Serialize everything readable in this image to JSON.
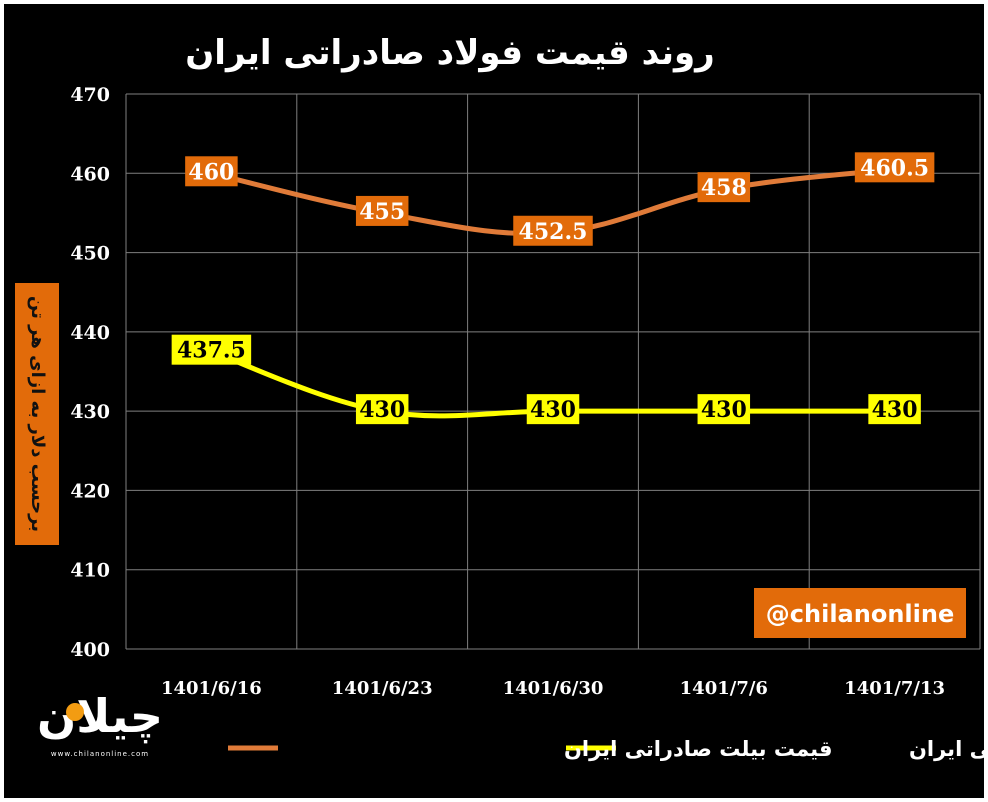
{
  "chart_data": {
    "type": "line",
    "title": "روند قیمت فولاد صادراتی ایران",
    "ylabel": "برحسب دلار به ازای هر تن",
    "xlabel": "",
    "categories": [
      "1401/6/16",
      "1401/6/23",
      "1401/6/30",
      "1401/7/6",
      "1401/7/13"
    ],
    "ylim": [
      400,
      470
    ],
    "yticks": [
      400,
      410,
      420,
      430,
      440,
      450,
      460,
      470
    ],
    "grid": true,
    "legend_position": "bottom",
    "series": [
      {
        "name": "قیمت بیلت صادراتی ایران",
        "values": [
          460,
          455,
          452.5,
          458,
          460.5
        ],
        "labels": [
          "460",
          "455",
          "452.5",
          "458",
          "460.5"
        ],
        "color": "#E07B39",
        "label_bg": "#E26B0A",
        "label_fg": "#ffffff"
      },
      {
        "name": "قیمت اسلب صادراتی ایران",
        "values": [
          437.5,
          430,
          430,
          430,
          430
        ],
        "labels": [
          "437.5",
          "430",
          "430",
          "430",
          "430"
        ],
        "color": "#FFFF00",
        "label_bg": "#FFFF00",
        "label_fg": "#000000"
      }
    ],
    "annotation": "@chilanonline",
    "annotation_bg": "#E26B0A",
    "ylabel_bg": "#E26B0A"
  },
  "logo": {
    "text": "چیلان",
    "url": "www.chilanonline.com"
  }
}
